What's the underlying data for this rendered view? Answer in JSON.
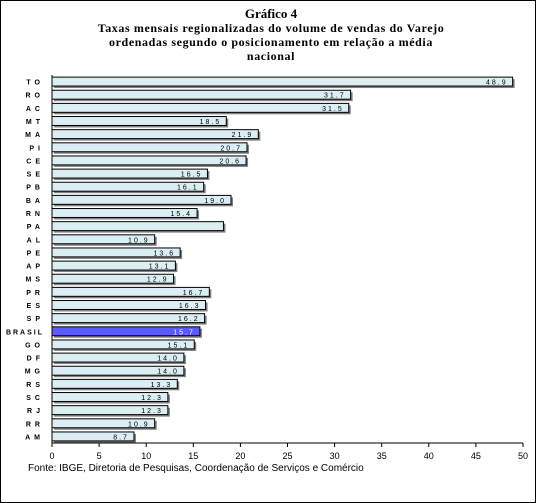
{
  "chart_data": {
    "type": "bar",
    "orientation": "horizontal",
    "title": "Gráfico 4",
    "subtitle_lines": [
      "Taxas mensais regionalizadas do volume de vendas do Varejo",
      "ordenadas segundo o posicionamento em relação a média",
      "nacional"
    ],
    "categories": [
      "TO",
      "RO",
      "AC",
      "MT",
      "MA",
      "PI",
      "CE",
      "SE",
      "PB",
      "BA",
      "RN",
      "PA",
      "AL",
      "PE",
      "AP",
      "MS",
      "PR",
      "ES",
      "SP",
      "BRASIL",
      "GO",
      "DF",
      "MG",
      "RS",
      "SC",
      "RJ",
      "RR",
      "AM"
    ],
    "values": [
      48.9,
      31.7,
      31.5,
      18.5,
      21.9,
      20.7,
      20.6,
      16.5,
      16.1,
      19.0,
      15.4,
      18.2,
      10.9,
      13.6,
      13.1,
      12.9,
      16.7,
      16.3,
      16.2,
      15.7,
      15.1,
      14.0,
      14.0,
      13.3,
      12.3,
      12.3,
      10.9,
      8.7
    ],
    "data_labels": [
      "48.9",
      "31.7",
      "31.5",
      "18.5",
      "21.9",
      "20.7",
      "20.6",
      "16.5",
      "16.1",
      "19.0",
      "15.4",
      "",
      "10.9",
      "13.6",
      "13.1",
      "12.9",
      "16.7",
      "16.3",
      "16.2",
      "15.7",
      "15.1",
      "14.0",
      "14.0",
      "13.3",
      "12.3",
      "12.3",
      "10.9",
      "8.7"
    ],
    "highlight_category": "BRASIL",
    "xlim": [
      0,
      50
    ],
    "xticks": [
      0,
      5,
      10,
      15,
      20,
      25,
      30,
      35,
      40,
      45,
      50
    ],
    "grid": false,
    "legend": "none",
    "colors": {
      "bar": "#dbeef3",
      "highlight": "#5a5aff",
      "outline": "#000000"
    }
  },
  "source_note": "Fonte: IBGE, Diretoria de Pesquisas, Coordenação de Serviços e Comércio"
}
